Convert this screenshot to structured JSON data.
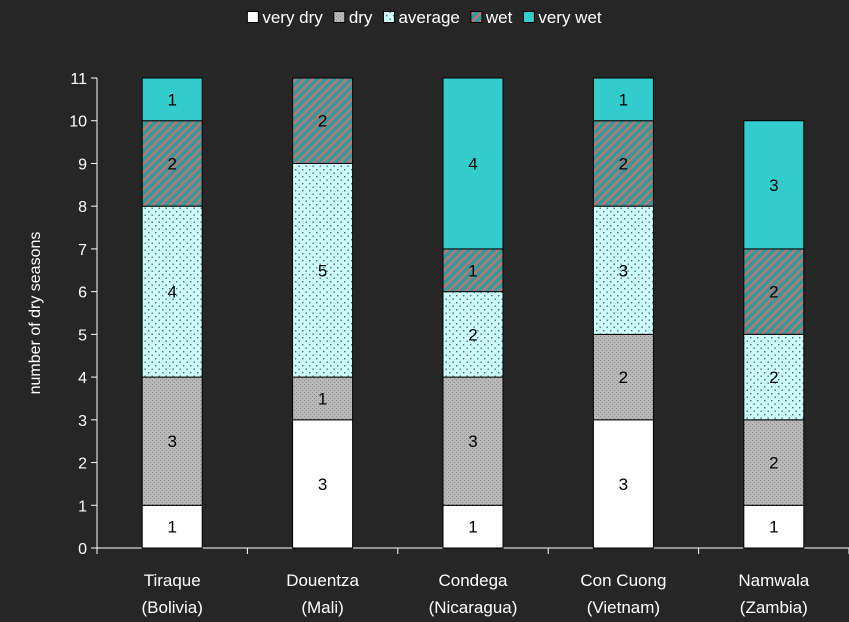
{
  "chart_data": {
    "type": "bar",
    "stacked": true,
    "title": "",
    "xlabel": "",
    "ylabel": "number of dry seasons",
    "ylim": [
      0,
      11
    ],
    "yticks": [
      "0",
      "1",
      "2",
      "3",
      "4",
      "5",
      "6",
      "7",
      "8",
      "9",
      "10",
      "11"
    ],
    "legend_position": "top",
    "categories": [
      [
        "Tiraque",
        "(Bolivia)"
      ],
      [
        "Douentza",
        "(Mali)"
      ],
      [
        "Condega",
        "(Nicaragua)"
      ],
      [
        "Con Cuong",
        "(Vietnam)"
      ],
      [
        "Namwala",
        "(Zambia)"
      ]
    ],
    "series": [
      {
        "name": "very dry",
        "values": [
          1,
          3,
          1,
          3,
          1
        ],
        "pattern": "solid-white",
        "color": "#ffffff"
      },
      {
        "name": "dry",
        "values": [
          3,
          1,
          3,
          2,
          2
        ],
        "pattern": "grey-stipple",
        "color": "#b3b3b3"
      },
      {
        "name": "average",
        "values": [
          4,
          5,
          2,
          3,
          2
        ],
        "pattern": "cyan-dots",
        "color": "#ccffff"
      },
      {
        "name": "wet",
        "values": [
          2,
          2,
          1,
          2,
          2
        ],
        "pattern": "teal-diagonal",
        "color": "#339999"
      },
      {
        "name": "very wet",
        "values": [
          1,
          0,
          4,
          1,
          3
        ],
        "pattern": "solid-cyan",
        "color": "#33cccc"
      }
    ]
  }
}
